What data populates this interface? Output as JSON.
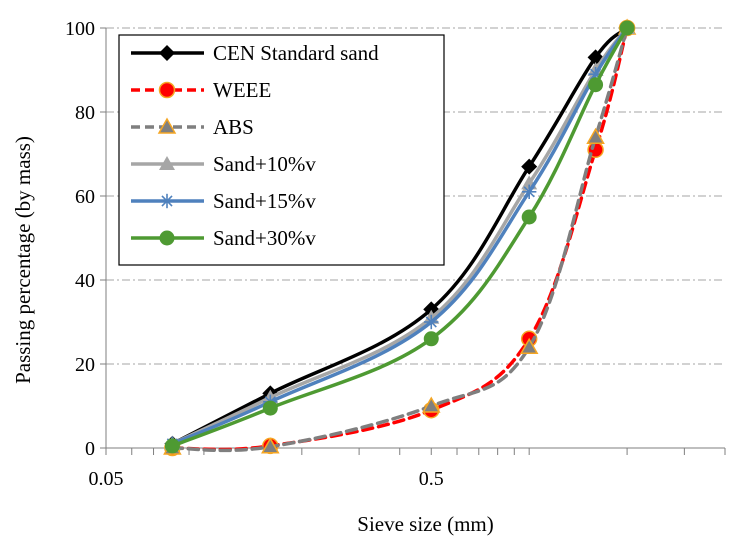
{
  "chart_data": {
    "type": "line",
    "title": "",
    "xlabel": "Sieve size (mm)",
    "ylabel": "Passing percentage (by mass)",
    "x_scale": "log",
    "xlim": [
      0.05,
      4
    ],
    "ylim": [
      0,
      100
    ],
    "x_tick_labels": [
      "0.05",
      "0.5"
    ],
    "y_tick_labels": [
      "0",
      "20",
      "40",
      "60",
      "80",
      "100"
    ],
    "grid": "horizontal dash-dot",
    "legend_position": "top-left",
    "x": [
      0.08,
      0.16,
      0.5,
      1.0,
      1.6,
      2.0
    ],
    "series": [
      {
        "name": "CEN Standard sand",
        "color": "#000000",
        "marker": "diamond",
        "dash": "solid",
        "values": [
          1,
          13,
          33,
          67,
          93,
          100
        ]
      },
      {
        "name": "WEEE",
        "color": "#ff0000",
        "marker": "circle",
        "dash": "dashed",
        "values": [
          0,
          0.5,
          9,
          26,
          71,
          100
        ]
      },
      {
        "name": "ABS",
        "color": "#7f7f7f",
        "marker": "triangle",
        "dash": "dashed",
        "values": [
          0,
          0.3,
          10,
          24,
          74,
          100
        ]
      },
      {
        "name": "Sand+10%v",
        "color": "#a6a6a6",
        "marker": "triangle",
        "dash": "solid",
        "values": [
          1,
          12,
          31,
          63,
          90,
          100
        ]
      },
      {
        "name": "Sand+15%v",
        "color": "#4f81bd",
        "marker": "star",
        "dash": "solid",
        "values": [
          1,
          11,
          30,
          61,
          89,
          100
        ]
      },
      {
        "name": "Sand+30%v",
        "color": "#4e9a32",
        "marker": "circle",
        "dash": "solid",
        "values": [
          0.5,
          9.5,
          26,
          55,
          86.5,
          100
        ]
      }
    ]
  }
}
